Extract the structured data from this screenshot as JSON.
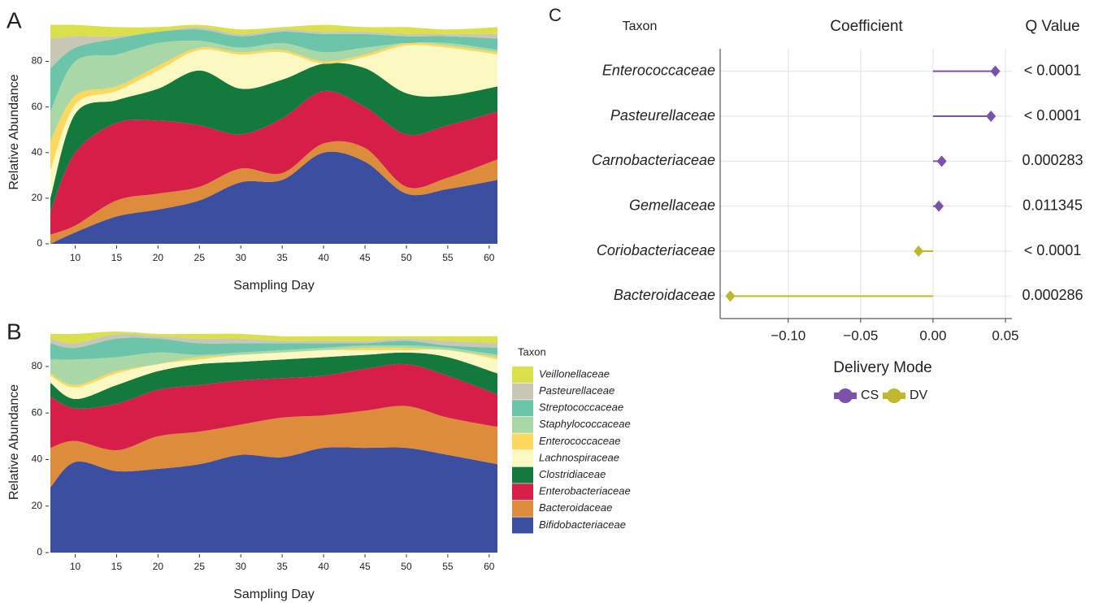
{
  "chart_data": [
    {
      "type": "stacked-area",
      "panel_label": "A",
      "x_label": "Sampling Day",
      "y_label": "Relative Abundance",
      "x": [
        7,
        10,
        15,
        20,
        25,
        30,
        35,
        40,
        45,
        50,
        55,
        61
      ],
      "xlim": [
        7,
        61
      ],
      "xticks": [
        10,
        15,
        20,
        25,
        30,
        35,
        40,
        45,
        50,
        55,
        60
      ],
      "ylim": [
        0,
        98
      ],
      "yticks": [
        0,
        20,
        40,
        60,
        80
      ],
      "series": [
        {
          "name": "Bifidobacteriaceae",
          "color": "#3c4ea0",
          "values": [
            0,
            5,
            12,
            15,
            19,
            27,
            28,
            40,
            36,
            22,
            24,
            28
          ]
        },
        {
          "name": "Bacteroidaceae",
          "color": "#dc8c3a",
          "values": [
            4,
            3,
            7,
            7,
            6,
            6,
            3,
            4,
            6,
            3,
            5,
            9
          ]
        },
        {
          "name": "Enterobacteriaceae",
          "color": "#d51f48",
          "values": [
            10,
            32,
            34,
            32,
            27,
            15,
            24,
            23,
            18,
            23,
            23,
            21
          ]
        },
        {
          "name": "Clostridiaceae",
          "color": "#137a3e",
          "values": [
            6,
            17,
            10,
            14,
            24,
            20,
            17,
            12,
            17,
            18,
            13,
            11
          ]
        },
        {
          "name": "Lachnospiraceae",
          "color": "#fbf8c1",
          "values": [
            12,
            4,
            4,
            8,
            9,
            15,
            12,
            0,
            5,
            21,
            21,
            14
          ]
        },
        {
          "name": "Enterococcaceae",
          "color": "#fcd85e",
          "values": [
            13,
            4,
            2,
            2,
            1,
            1,
            1,
            1,
            1,
            1,
            1,
            1
          ]
        },
        {
          "name": "Staphylococcaceae",
          "color": "#a9d8a6",
          "values": [
            13,
            15,
            14,
            10,
            3,
            2,
            3,
            4,
            3,
            0,
            1,
            1
          ]
        },
        {
          "name": "Streptococcaceae",
          "color": "#6cc5a8",
          "values": [
            19,
            6,
            7,
            5,
            5,
            5,
            5,
            8,
            6,
            3,
            3,
            5
          ]
        },
        {
          "name": "Pasteurellaceae",
          "color": "#c8c6b4",
          "values": [
            13,
            5,
            1,
            0,
            1,
            1,
            1,
            1,
            1,
            1,
            1,
            2
          ]
        },
        {
          "name": "Veillonellaceae",
          "color": "#d9e04a",
          "values": [
            6,
            5,
            4,
            2,
            1,
            2,
            1,
            3,
            2,
            3,
            2,
            3
          ]
        }
      ]
    },
    {
      "type": "stacked-area",
      "panel_label": "B",
      "x_label": "Sampling Day",
      "y_label": "Relative Abundance",
      "legend_title": "Taxon",
      "legend": "right",
      "x": [
        7,
        10,
        15,
        20,
        25,
        30,
        35,
        40,
        45,
        50,
        55,
        61
      ],
      "xlim": [
        7,
        61
      ],
      "xticks": [
        10,
        15,
        20,
        25,
        30,
        35,
        40,
        45,
        50,
        55,
        60
      ],
      "ylim": [
        0,
        95
      ],
      "yticks": [
        0,
        20,
        40,
        60,
        80
      ],
      "series": [
        {
          "name": "Bifidobacteriaceae",
          "color": "#3c4ea0",
          "values": [
            28,
            39,
            35,
            36,
            38,
            42,
            41,
            45,
            45,
            45,
            42,
            38
          ]
        },
        {
          "name": "Bacteroidaceae",
          "color": "#dc8c3a",
          "values": [
            17,
            9,
            9,
            14,
            14,
            13,
            17,
            14,
            16,
            18,
            16,
            16
          ]
        },
        {
          "name": "Enterobacteriaceae",
          "color": "#d51f48",
          "values": [
            22,
            14,
            20,
            20,
            20,
            19,
            17,
            17,
            18,
            18,
            18,
            14
          ]
        },
        {
          "name": "Clostridiaceae",
          "color": "#137a3e",
          "values": [
            6,
            4,
            8,
            8,
            9,
            8,
            8,
            8,
            6,
            5,
            8,
            9
          ]
        },
        {
          "name": "Lachnospiraceae",
          "color": "#fbf8c1",
          "values": [
            3,
            5,
            5,
            3,
            2,
            3,
            3,
            3,
            2,
            1,
            3,
            6
          ]
        },
        {
          "name": "Enterococcaceae",
          "color": "#fcd85e",
          "values": [
            1,
            1,
            1,
            0,
            1,
            0,
            0,
            0,
            1,
            1,
            0,
            1
          ]
        },
        {
          "name": "Staphylococcaceae",
          "color": "#a9d8a6",
          "values": [
            6,
            11,
            6,
            5,
            1,
            1,
            1,
            1,
            1,
            1,
            1,
            1
          ]
        },
        {
          "name": "Streptococcaceae",
          "color": "#6cc5a8",
          "values": [
            7,
            5,
            8,
            6,
            5,
            4,
            3,
            2,
            1,
            2,
            1,
            3
          ]
        },
        {
          "name": "Pasteurellaceae",
          "color": "#c8c6b4",
          "values": [
            2,
            2,
            2,
            1,
            2,
            2,
            1,
            1,
            1,
            1,
            2,
            2
          ]
        },
        {
          "name": "Veillonellaceae",
          "color": "#d9e04a",
          "values": [
            2,
            4,
            1,
            1,
            2,
            2,
            2,
            2,
            2,
            1,
            2,
            3
          ]
        }
      ]
    },
    {
      "type": "lollipop",
      "panel_label": "C",
      "category_header": "Taxon",
      "value_header": "Coefficient",
      "q_header": "Q Value",
      "legend_title": "Delivery Mode",
      "categories": [
        "Enterococcaceae",
        "Pasteurellaceae",
        "Carnobacteriaceae",
        "Gemellaceae",
        "Coriobacteriaceae",
        "Bacteroidaceae"
      ],
      "q_values": [
        "< 0.0001",
        "< 0.0001",
        "0.000283",
        "0.011345",
        "< 0.0001",
        "0.000286"
      ],
      "xlim": [
        -0.147,
        0.0545
      ],
      "xticks": [
        {
          "value": -0.1,
          "label": "−0.10"
        },
        {
          "value": -0.05,
          "label": "−0.05"
        },
        {
          "value": 0,
          "label": "0.00"
        },
        {
          "value": 0.05,
          "label": "0.05"
        }
      ],
      "grid": true,
      "series": [
        {
          "name": "CS",
          "color": "#7b52ab",
          "values": [
            0.043,
            0.04,
            0.006,
            0.004,
            null,
            null
          ]
        },
        {
          "name": "DV",
          "color": "#bfb72e",
          "values": [
            null,
            null,
            null,
            null,
            -0.01,
            -0.14
          ]
        }
      ]
    }
  ]
}
